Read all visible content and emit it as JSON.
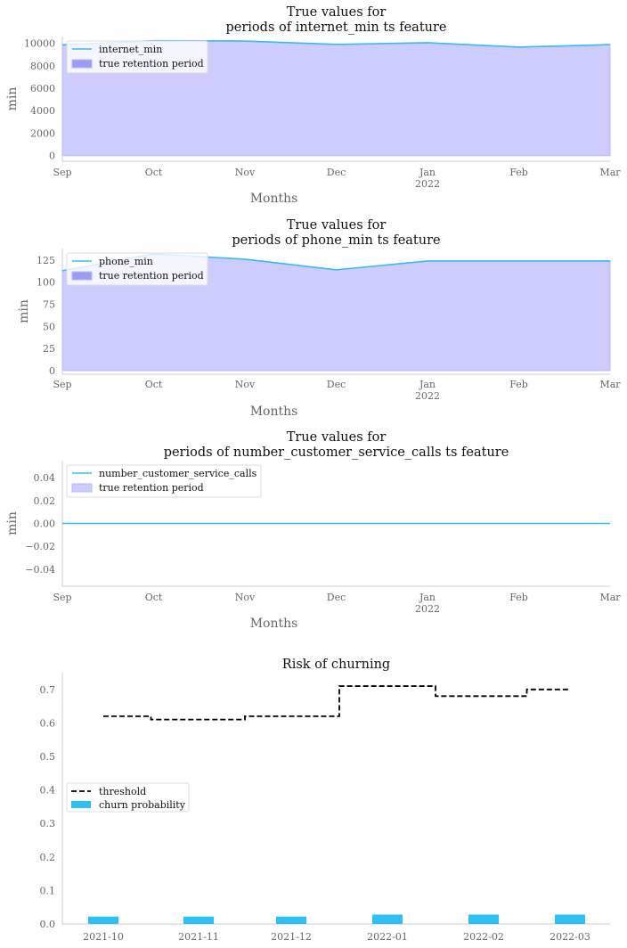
{
  "colors": {
    "line": "#3cb8f2",
    "fill": "#ccccff",
    "fill_stroke": "#b9b9f7",
    "legend_fill_dark": "#9d9cf2",
    "threshold": "#000000",
    "bar": "#2ec0f5",
    "spine": "#cccccc"
  },
  "chart_data": [
    {
      "type": "area",
      "title_lines": [
        "True values for",
        "periods of internet_min ts feature"
      ],
      "xlabel": "Months",
      "ylabel": "min",
      "x_dates": [
        "2021-09",
        "2021-10",
        "2021-11",
        "2021-12",
        "2022-01",
        "2022-02",
        "2022-03"
      ],
      "x_ticks": [
        "Sep",
        "Oct",
        "Nov",
        "Dec",
        "Jan",
        "Feb",
        "Mar"
      ],
      "x_year_label": "2022",
      "y_ticks": [
        "0",
        "2000",
        "4000",
        "6000",
        "8000",
        "10000"
      ],
      "ylim": [
        -500,
        10600
      ],
      "series": [
        {
          "name": "internet_min",
          "kind": "line",
          "values": [
            9850,
            10230,
            10200,
            9900,
            10050,
            9660,
            9880
          ]
        },
        {
          "name": "true retention period",
          "kind": "fill",
          "values": [
            9850,
            10230,
            10200,
            9900,
            10050,
            9660,
            9880
          ]
        }
      ]
    },
    {
      "type": "area",
      "title_lines": [
        "True values for",
        "periods of phone_min ts feature"
      ],
      "xlabel": "Months",
      "ylabel": "min",
      "x_dates": [
        "2021-09",
        "2021-10",
        "2021-11",
        "2021-12",
        "2022-01",
        "2022-02",
        "2022-03"
      ],
      "x_ticks": [
        "Sep",
        "Oct",
        "Nov",
        "Dec",
        "Jan",
        "Feb",
        "Mar"
      ],
      "x_year_label": "2022",
      "y_ticks": [
        "0",
        "25",
        "50",
        "75",
        "100",
        "125"
      ],
      "ylim": [
        -4,
        138
      ],
      "series": [
        {
          "name": "phone_min",
          "kind": "line",
          "values": [
            113,
            132,
            126,
            114,
            124,
            124,
            124
          ]
        },
        {
          "name": "true retention period",
          "kind": "fill",
          "values": [
            113,
            132,
            126,
            114,
            124,
            124,
            124
          ]
        }
      ]
    },
    {
      "type": "area",
      "title_lines": [
        "True values for",
        "periods of number_customer_service_calls ts feature"
      ],
      "xlabel": "Months",
      "ylabel": "min",
      "x_dates": [
        "2021-09",
        "2021-10",
        "2021-11",
        "2021-12",
        "2022-01",
        "2022-02",
        "2022-03"
      ],
      "x_ticks": [
        "Sep",
        "Oct",
        "Nov",
        "Dec",
        "Jan",
        "Feb",
        "Mar"
      ],
      "x_year_label": "2022",
      "y_ticks": [
        "0.04",
        "0.02",
        "0.00",
        "−0.02",
        "−0.04"
      ],
      "y_tick_values": [
        0.04,
        0.02,
        0.0,
        -0.02,
        -0.04
      ],
      "ylim": [
        -0.055,
        0.055
      ],
      "series": [
        {
          "name": "number_customer_service_calls",
          "kind": "line",
          "values": [
            0,
            0,
            0,
            0,
            0,
            0,
            0
          ]
        },
        {
          "name": "true retention period",
          "kind": "fill",
          "values": [
            0,
            0,
            0,
            0,
            0,
            0,
            0
          ]
        }
      ]
    },
    {
      "type": "bar",
      "title": "Risk of churning",
      "categories": [
        "2021-10",
        "2021-11",
        "2021-12",
        "2022-01",
        "2022-02",
        "2022-03"
      ],
      "y_ticks": [
        "0.0",
        "0.1",
        "0.2",
        "0.3",
        "0.4",
        "0.5",
        "0.6",
        "0.7"
      ],
      "ylim": [
        0,
        0.75
      ],
      "series": [
        {
          "name": "threshold",
          "kind": "step-line",
          "values": [
            0.62,
            0.61,
            0.62,
            0.71,
            0.68,
            0.7
          ]
        },
        {
          "name": "churn probability",
          "kind": "bar",
          "values": [
            0.022,
            0.022,
            0.022,
            0.028,
            0.028,
            0.028
          ]
        }
      ]
    }
  ]
}
